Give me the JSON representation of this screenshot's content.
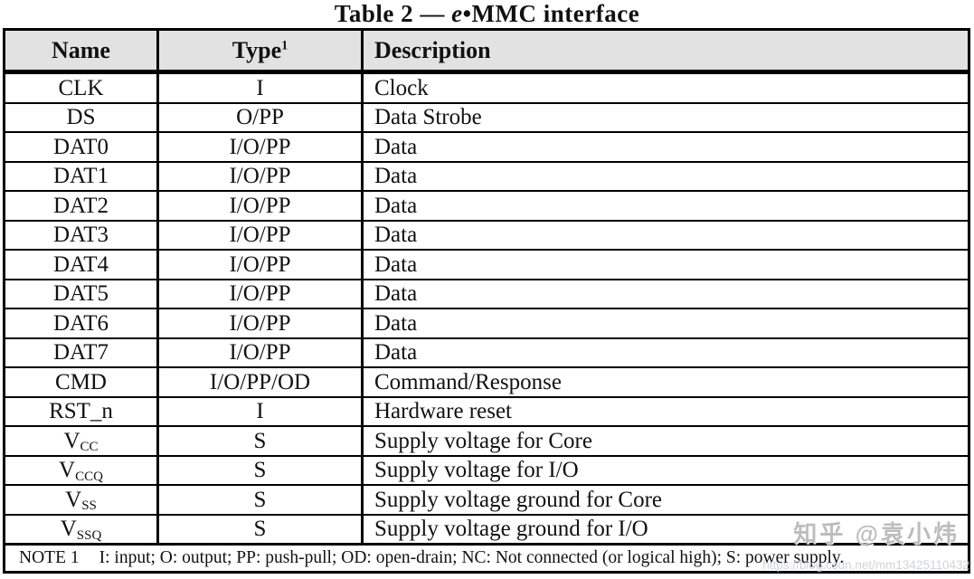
{
  "page": {
    "title": {
      "part1": "Table 2 — ",
      "italic_e": "e",
      "part2": "•MMC interface"
    }
  },
  "table": {
    "columns": [
      {
        "label": "Name",
        "sup": ""
      },
      {
        "label": "Type",
        "sup": "1"
      },
      {
        "label": "Description",
        "sup": ""
      }
    ],
    "rows": [
      {
        "name": "CLK",
        "name_sub": "",
        "type": "I",
        "description": "Clock"
      },
      {
        "name": "DS",
        "name_sub": "",
        "type": "O/PP",
        "description": "Data Strobe"
      },
      {
        "name": "DAT0",
        "name_sub": "",
        "type": "I/O/PP",
        "description": "Data"
      },
      {
        "name": "DAT1",
        "name_sub": "",
        "type": "I/O/PP",
        "description": "Data"
      },
      {
        "name": "DAT2",
        "name_sub": "",
        "type": "I/O/PP",
        "description": "Data"
      },
      {
        "name": "DAT3",
        "name_sub": "",
        "type": "I/O/PP",
        "description": "Data"
      },
      {
        "name": "DAT4",
        "name_sub": "",
        "type": "I/O/PP",
        "description": "Data"
      },
      {
        "name": "DAT5",
        "name_sub": "",
        "type": "I/O/PP",
        "description": "Data"
      },
      {
        "name": "DAT6",
        "name_sub": "",
        "type": "I/O/PP",
        "description": "Data"
      },
      {
        "name": "DAT7",
        "name_sub": "",
        "type": "I/O/PP",
        "description": "Data"
      },
      {
        "name": "CMD",
        "name_sub": "",
        "type": "I/O/PP/OD",
        "description": "Command/Response"
      },
      {
        "name": "RST_n",
        "name_sub": "",
        "type": "I",
        "description": "Hardware reset"
      },
      {
        "name": "V",
        "name_sub": "CC",
        "type": "S",
        "description": "Supply voltage for Core"
      },
      {
        "name": "V",
        "name_sub": "CCQ",
        "type": "S",
        "description": "Supply voltage for I/O"
      },
      {
        "name": "V",
        "name_sub": "SS",
        "type": "S",
        "description": "Supply voltage ground for Core"
      },
      {
        "name": "V",
        "name_sub": "SSQ",
        "type": "S",
        "description": "Supply voltage ground for I/O"
      }
    ],
    "note": {
      "label": "NOTE 1",
      "text": "I: input; O: output; PP: push-pull; OD: open-drain; NC: Not connected (or logical high); S: power supply."
    }
  },
  "watermarks": {
    "zhihu": "知乎 @袁小炜",
    "url": "https://blog.csdn.net/mm13425110432"
  },
  "colors": {
    "header_bg": "#e2e2e2",
    "border": "#000000",
    "watermark_gray": "#949494"
  }
}
